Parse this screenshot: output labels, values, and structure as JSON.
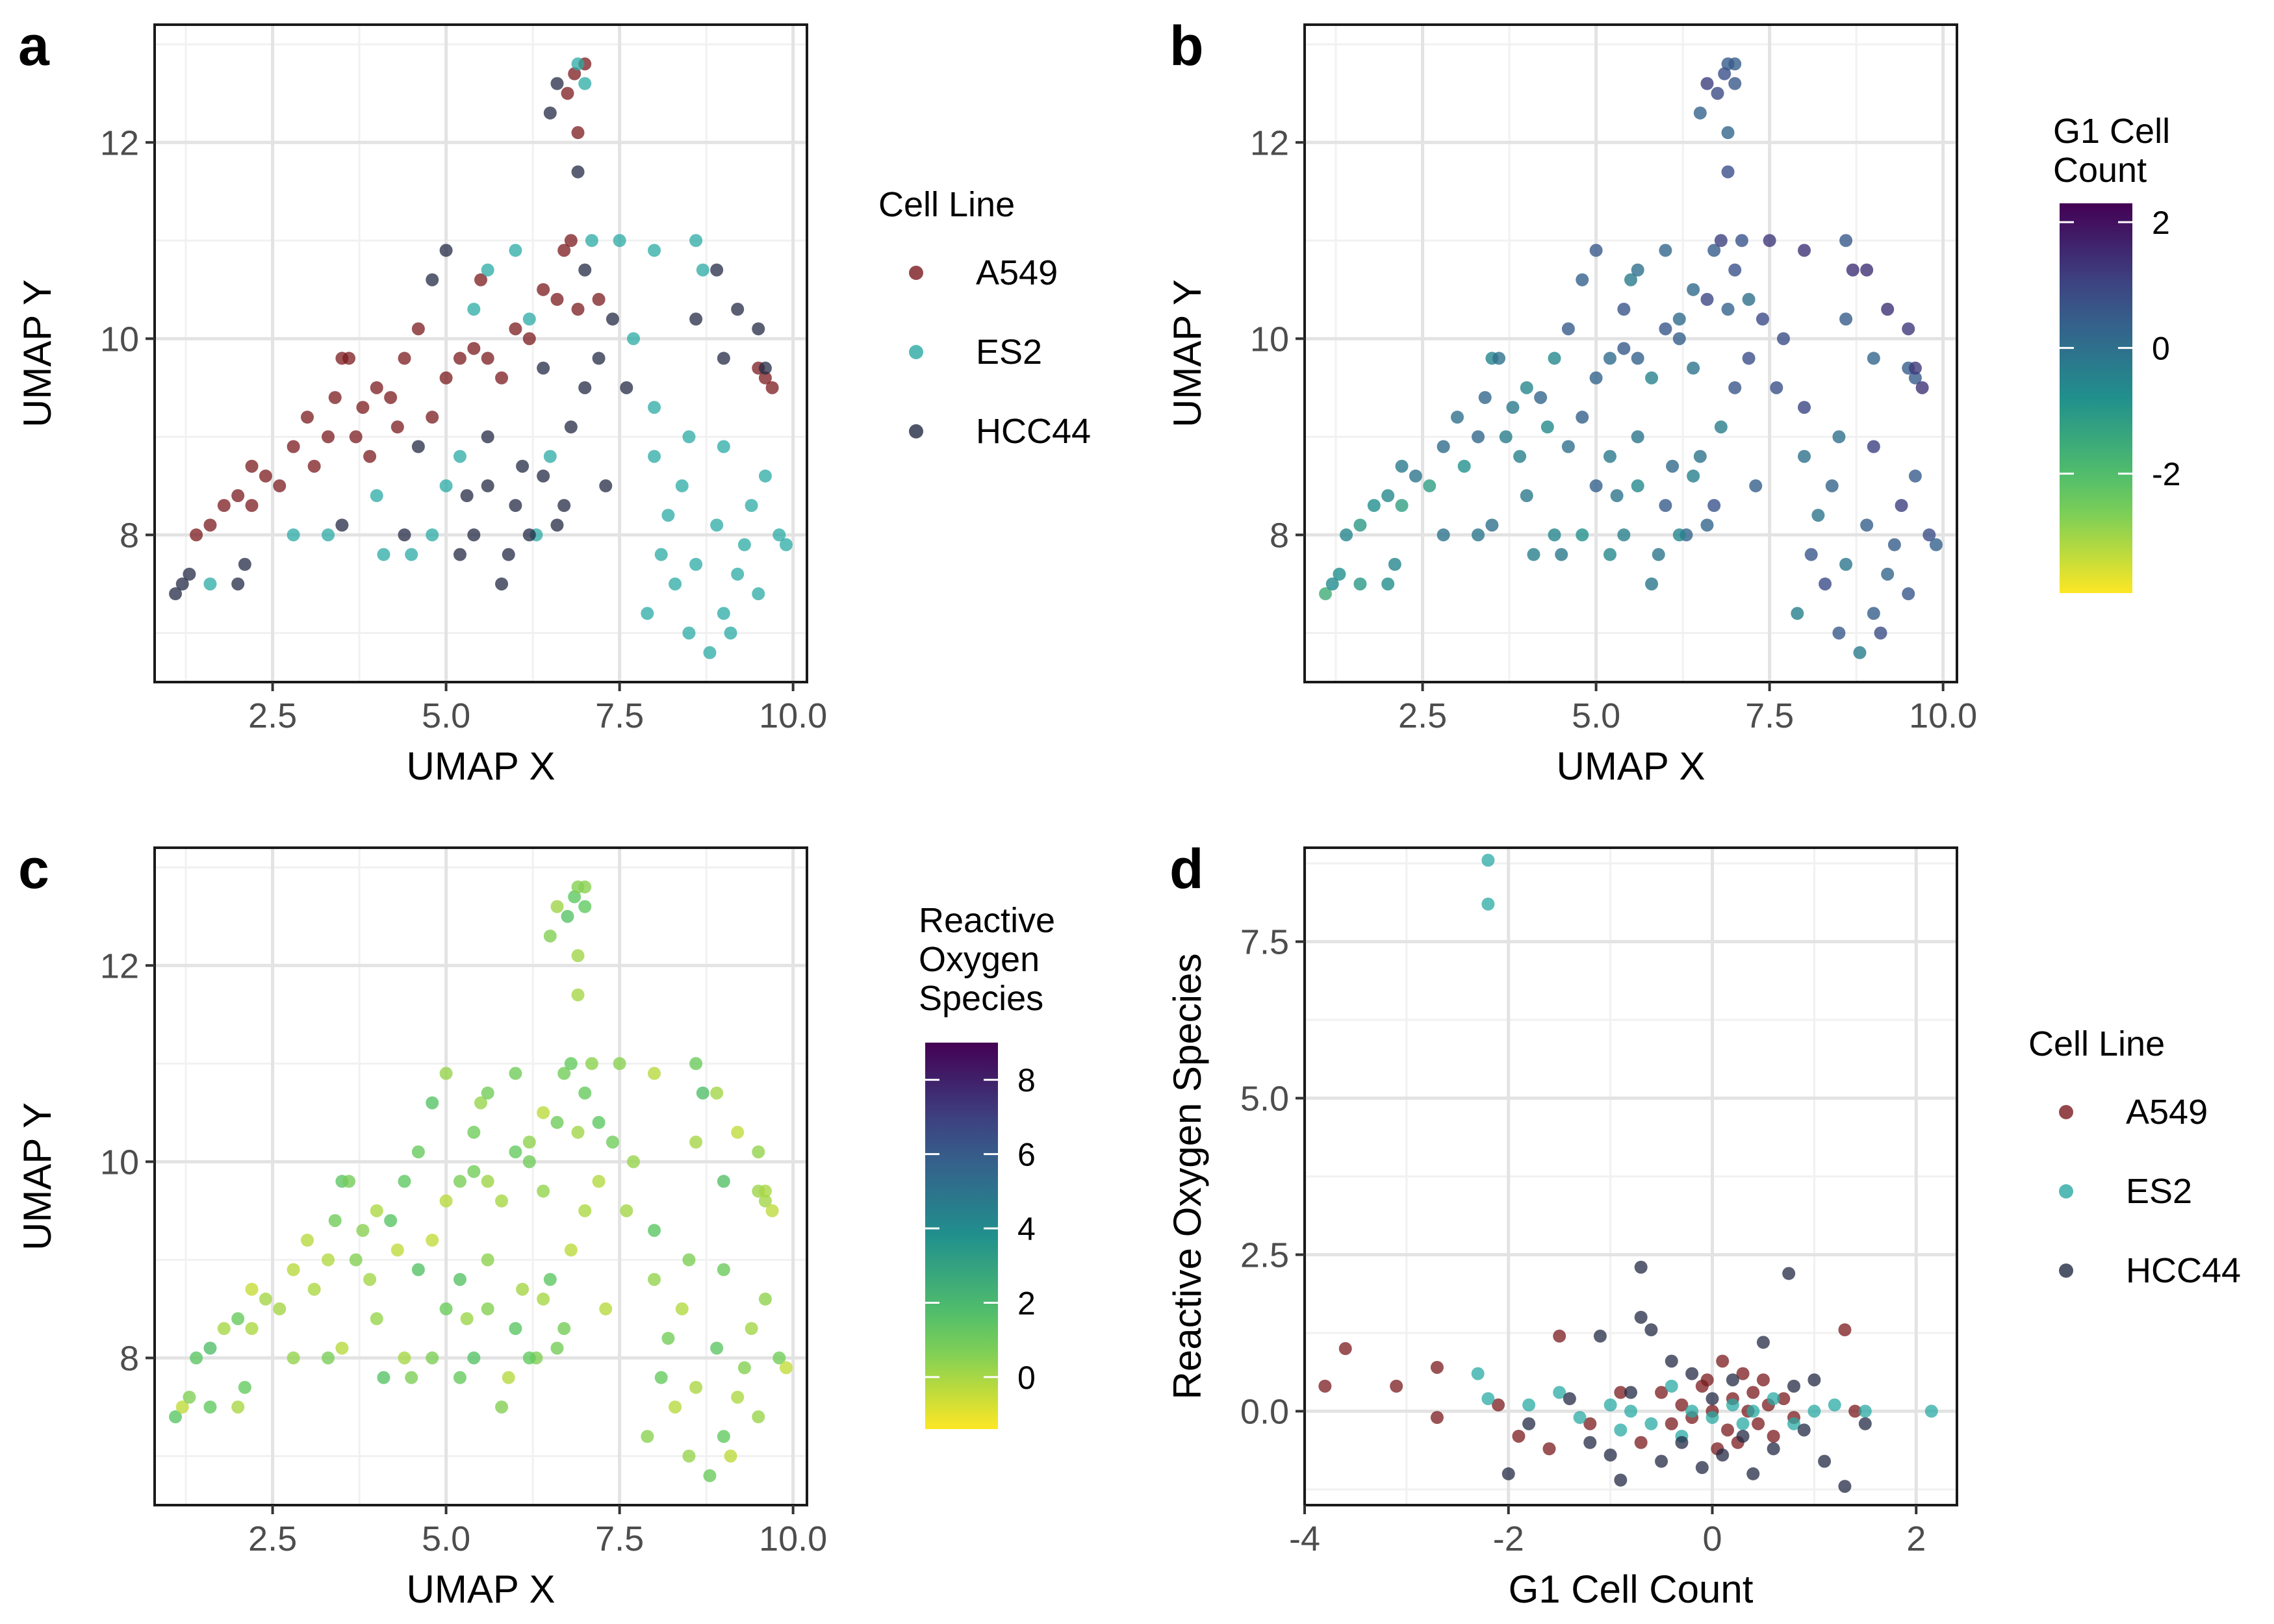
{
  "panel_labels": [
    "a",
    "b",
    "c",
    "d"
  ],
  "chart_data": [
    {
      "panel": "a",
      "type": "scatter",
      "xlabel": "UMAP X",
      "ylabel": "UMAP Y",
      "xlim": [
        0.8,
        10.2
      ],
      "ylim": [
        6.5,
        13.2
      ],
      "xticks": [
        "2.5",
        "5.0",
        "7.5",
        "10.0"
      ],
      "yticks": [
        "8",
        "10",
        "12"
      ],
      "grid": true,
      "color_by": "Cell Line",
      "legend": {
        "title": "Cell Line",
        "entries": [
          {
            "name": "A549",
            "color": "#7a1a1e"
          },
          {
            "name": "ES2",
            "color": "#2aa9a4"
          },
          {
            "name": "HCC44",
            "color": "#232a44"
          }
        ]
      },
      "series": [
        {
          "name": "A549",
          "color": "#7a1a1e",
          "points": [
            [
              1.4,
              8.0
            ],
            [
              1.6,
              8.1
            ],
            [
              1.8,
              8.3
            ],
            [
              2.0,
              8.4
            ],
            [
              2.2,
              8.3
            ],
            [
              2.4,
              8.6
            ],
            [
              2.6,
              8.5
            ],
            [
              2.8,
              8.9
            ],
            [
              3.0,
              9.2
            ],
            [
              3.1,
              8.7
            ],
            [
              3.3,
              9.0
            ],
            [
              3.4,
              9.4
            ],
            [
              3.5,
              9.8
            ],
            [
              3.6,
              9.8
            ],
            [
              3.7,
              9.0
            ],
            [
              3.8,
              9.3
            ],
            [
              4.0,
              9.5
            ],
            [
              4.2,
              9.4
            ],
            [
              4.4,
              9.8
            ],
            [
              4.6,
              10.1
            ],
            [
              4.8,
              9.2
            ],
            [
              5.0,
              9.6
            ],
            [
              5.2,
              9.8
            ],
            [
              5.4,
              9.9
            ],
            [
              5.6,
              9.8
            ],
            [
              5.8,
              9.6
            ],
            [
              6.0,
              10.1
            ],
            [
              6.2,
              10.0
            ],
            [
              6.4,
              10.5
            ],
            [
              6.6,
              10.4
            ],
            [
              6.7,
              10.9
            ],
            [
              6.8,
              11.0
            ],
            [
              6.9,
              10.3
            ],
            [
              6.75,
              12.5
            ],
            [
              6.85,
              12.7
            ],
            [
              6.9,
              12.1
            ],
            [
              7.0,
              12.8
            ],
            [
              7.2,
              10.4
            ],
            [
              9.5,
              9.7
            ],
            [
              9.6,
              9.6
            ],
            [
              9.7,
              9.5
            ],
            [
              5.5,
              10.6
            ],
            [
              4.3,
              9.1
            ],
            [
              3.9,
              8.8
            ],
            [
              2.2,
              8.7
            ]
          ]
        },
        {
          "name": "ES2",
          "color": "#2aa9a4",
          "points": [
            [
              1.6,
              7.5
            ],
            [
              2.8,
              8.0
            ],
            [
              3.3,
              8.0
            ],
            [
              4.0,
              8.4
            ],
            [
              4.1,
              7.8
            ],
            [
              4.5,
              7.8
            ],
            [
              5.0,
              8.5
            ],
            [
              5.2,
              8.8
            ],
            [
              5.6,
              10.7
            ],
            [
              6.0,
              10.9
            ],
            [
              6.2,
              10.2
            ],
            [
              6.5,
              8.8
            ],
            [
              6.9,
              12.8
            ],
            [
              7.0,
              12.6
            ],
            [
              7.1,
              11.0
            ],
            [
              7.7,
              10.0
            ],
            [
              8.0,
              8.8
            ],
            [
              8.3,
              7.5
            ],
            [
              8.5,
              7.0
            ],
            [
              8.6,
              11.0
            ],
            [
              8.7,
              10.7
            ],
            [
              8.9,
              8.1
            ],
            [
              9.0,
              7.2
            ],
            [
              9.2,
              7.6
            ],
            [
              9.4,
              8.3
            ],
            [
              9.6,
              8.6
            ],
            [
              9.8,
              8.0
            ],
            [
              9.9,
              7.9
            ],
            [
              8.2,
              8.2
            ],
            [
              8.4,
              8.5
            ],
            [
              8.6,
              7.7
            ],
            [
              8.8,
              6.8
            ],
            [
              9.1,
              7.0
            ],
            [
              9.3,
              7.9
            ],
            [
              9.5,
              7.4
            ],
            [
              7.9,
              7.2
            ],
            [
              8.1,
              7.8
            ],
            [
              8.0,
              9.3
            ],
            [
              8.5,
              9.0
            ],
            [
              9.0,
              8.9
            ],
            [
              6.3,
              8.0
            ],
            [
              7.5,
              11.0
            ],
            [
              8.0,
              10.9
            ],
            [
              5.4,
              10.3
            ],
            [
              4.8,
              8.0
            ]
          ]
        },
        {
          "name": "HCC44",
          "color": "#232a44",
          "points": [
            [
              1.1,
              7.4
            ],
            [
              1.2,
              7.5
            ],
            [
              1.3,
              7.6
            ],
            [
              2.0,
              7.5
            ],
            [
              2.1,
              7.7
            ],
            [
              3.5,
              8.1
            ],
            [
              4.4,
              8.0
            ],
            [
              4.6,
              8.9
            ],
            [
              4.8,
              10.6
            ],
            [
              5.0,
              10.9
            ],
            [
              5.2,
              7.8
            ],
            [
              5.4,
              8.0
            ],
            [
              5.6,
              8.5
            ],
            [
              5.8,
              7.5
            ],
            [
              5.9,
              7.8
            ],
            [
              6.0,
              8.3
            ],
            [
              6.2,
              8.0
            ],
            [
              6.4,
              8.6
            ],
            [
              6.6,
              8.1
            ],
            [
              6.8,
              9.1
            ],
            [
              6.9,
              11.7
            ],
            [
              6.5,
              12.3
            ],
            [
              6.6,
              12.6
            ],
            [
              7.0,
              9.5
            ],
            [
              7.2,
              9.8
            ],
            [
              7.4,
              10.2
            ],
            [
              7.6,
              9.5
            ],
            [
              8.9,
              10.7
            ],
            [
              9.2,
              10.3
            ],
            [
              9.5,
              10.1
            ],
            [
              9.6,
              9.7
            ],
            [
              8.6,
              10.2
            ],
            [
              9.0,
              9.8
            ],
            [
              5.6,
              9.0
            ],
            [
              6.4,
              9.7
            ],
            [
              7.0,
              10.7
            ],
            [
              5.3,
              8.4
            ],
            [
              6.1,
              8.7
            ],
            [
              7.3,
              8.5
            ],
            [
              6.7,
              8.3
            ]
          ]
        }
      ]
    },
    {
      "panel": "b",
      "type": "scatter",
      "xlabel": "UMAP X",
      "ylabel": "UMAP Y",
      "xlim": [
        0.8,
        10.2
      ],
      "ylim": [
        6.5,
        13.2
      ],
      "xticks": [
        "2.5",
        "5.0",
        "7.5",
        "10.0"
      ],
      "yticks": [
        "8",
        "10",
        "12"
      ],
      "grid": true,
      "color_by": "G1 Cell Count",
      "colorbar": {
        "title": "G1 Cell\nCount",
        "range": [
          -3.9,
          2.3
        ],
        "ticks": [
          "2",
          "0",
          "-2"
        ],
        "tick_values": [
          2,
          0,
          -2
        ]
      },
      "notes": "Same UMAP positions as panel a; points coloured by G1 Cell Count (mostly near 0, yellow-green at lower-left)."
    },
    {
      "panel": "c",
      "type": "scatter",
      "xlabel": "UMAP X",
      "ylabel": "UMAP Y",
      "xlim": [
        0.8,
        10.2
      ],
      "ylim": [
        6.5,
        13.2
      ],
      "xticks": [
        "2.5",
        "5.0",
        "7.5",
        "10.0"
      ],
      "yticks": [
        "8",
        "10",
        "12"
      ],
      "grid": true,
      "color_by": "Reactive Oxygen Species",
      "colorbar": {
        "title": "Reactive\nOxygen\nSpecies",
        "range": [
          -1.4,
          9.0
        ],
        "ticks": [
          "8",
          "6",
          "4",
          "2",
          "0"
        ],
        "tick_values": [
          8,
          6,
          4,
          2,
          0
        ]
      },
      "notes": "Same UMAP positions as panel a; points coloured by Reactive Oxygen Species (mostly near 0, green)."
    },
    {
      "panel": "d",
      "type": "scatter",
      "xlabel": "G1 Cell Count",
      "ylabel": "Reactive Oxygen Species",
      "xlim": [
        -4.0,
        2.4
      ],
      "ylim": [
        -1.5,
        9.0
      ],
      "xticks": [
        "-4",
        "-2",
        "0",
        "2"
      ],
      "yticks": [
        "0.0",
        "2.5",
        "5.0",
        "7.5"
      ],
      "grid": true,
      "legend": {
        "title": "Cell Line",
        "entries": [
          {
            "name": "A549",
            "color": "#7a1a1e"
          },
          {
            "name": "ES2",
            "color": "#2aa9a4"
          },
          {
            "name": "HCC44",
            "color": "#232a44"
          }
        ]
      },
      "series": [
        {
          "name": "A549",
          "color": "#7a1a1e",
          "points": [
            [
              -3.8,
              0.4
            ],
            [
              -3.6,
              1.0
            ],
            [
              -3.1,
              0.4
            ],
            [
              -2.7,
              0.7
            ],
            [
              -2.7,
              -0.1
            ],
            [
              -2.1,
              0.1
            ],
            [
              -1.9,
              -0.4
            ],
            [
              -1.6,
              -0.6
            ],
            [
              -1.5,
              1.2
            ],
            [
              -1.2,
              -0.2
            ],
            [
              -0.9,
              0.3
            ],
            [
              -0.7,
              -0.5
            ],
            [
              -0.5,
              0.3
            ],
            [
              -0.4,
              -0.2
            ],
            [
              -0.3,
              0.1
            ],
            [
              -0.2,
              -0.1
            ],
            [
              -0.1,
              0.4
            ],
            [
              0.0,
              0.0
            ],
            [
              0.1,
              0.8
            ],
            [
              0.15,
              -0.3
            ],
            [
              0.2,
              0.2
            ],
            [
              0.25,
              -0.5
            ],
            [
              0.3,
              0.6
            ],
            [
              0.35,
              0.0
            ],
            [
              0.4,
              0.3
            ],
            [
              0.45,
              -0.2
            ],
            [
              0.5,
              0.5
            ],
            [
              0.55,
              0.1
            ],
            [
              0.6,
              -0.4
            ],
            [
              0.7,
              0.2
            ],
            [
              0.8,
              -0.1
            ],
            [
              1.3,
              1.3
            ],
            [
              1.4,
              0.0
            ],
            [
              0.05,
              -0.6
            ],
            [
              -0.05,
              0.5
            ]
          ]
        },
        {
          "name": "ES2",
          "color": "#2aa9a4",
          "points": [
            [
              -2.2,
              8.8
            ],
            [
              -2.2,
              8.1
            ],
            [
              -2.3,
              0.6
            ],
            [
              -2.2,
              0.2
            ],
            [
              -1.8,
              0.1
            ],
            [
              -1.5,
              0.3
            ],
            [
              -1.3,
              -0.1
            ],
            [
              -1.0,
              0.1
            ],
            [
              -0.8,
              0.0
            ],
            [
              -0.6,
              -0.2
            ],
            [
              -0.4,
              0.4
            ],
            [
              -0.2,
              0.0
            ],
            [
              0.0,
              -0.1
            ],
            [
              0.2,
              0.1
            ],
            [
              0.4,
              0.0
            ],
            [
              0.6,
              0.2
            ],
            [
              0.8,
              -0.2
            ],
            [
              1.0,
              0.0
            ],
            [
              1.2,
              0.1
            ],
            [
              1.5,
              0.0
            ],
            [
              2.15,
              0.0
            ],
            [
              -0.9,
              -0.3
            ],
            [
              -0.3,
              -0.4
            ],
            [
              0.3,
              -0.2
            ]
          ]
        },
        {
          "name": "HCC44",
          "color": "#232a44",
          "points": [
            [
              -2.0,
              -1.0
            ],
            [
              -1.8,
              -0.2
            ],
            [
              -1.4,
              0.2
            ],
            [
              -1.2,
              -0.5
            ],
            [
              -1.0,
              -0.7
            ],
            [
              -0.9,
              -1.1
            ],
            [
              -0.7,
              2.3
            ],
            [
              -0.7,
              1.5
            ],
            [
              -0.6,
              1.3
            ],
            [
              -0.5,
              -0.8
            ],
            [
              -0.4,
              0.8
            ],
            [
              -0.3,
              -0.5
            ],
            [
              -0.2,
              0.6
            ],
            [
              -0.1,
              -0.9
            ],
            [
              0.0,
              0.2
            ],
            [
              0.1,
              -0.7
            ],
            [
              0.2,
              0.5
            ],
            [
              0.3,
              -0.4
            ],
            [
              0.5,
              1.1
            ],
            [
              0.6,
              -0.6
            ],
            [
              0.75,
              2.2
            ],
            [
              0.8,
              0.4
            ],
            [
              0.9,
              -0.3
            ],
            [
              1.0,
              0.5
            ],
            [
              1.1,
              -0.8
            ],
            [
              1.3,
              -1.2
            ],
            [
              1.5,
              -0.2
            ],
            [
              -1.1,
              1.2
            ],
            [
              0.4,
              -1.0
            ],
            [
              -0.8,
              0.3
            ]
          ]
        }
      ]
    }
  ]
}
